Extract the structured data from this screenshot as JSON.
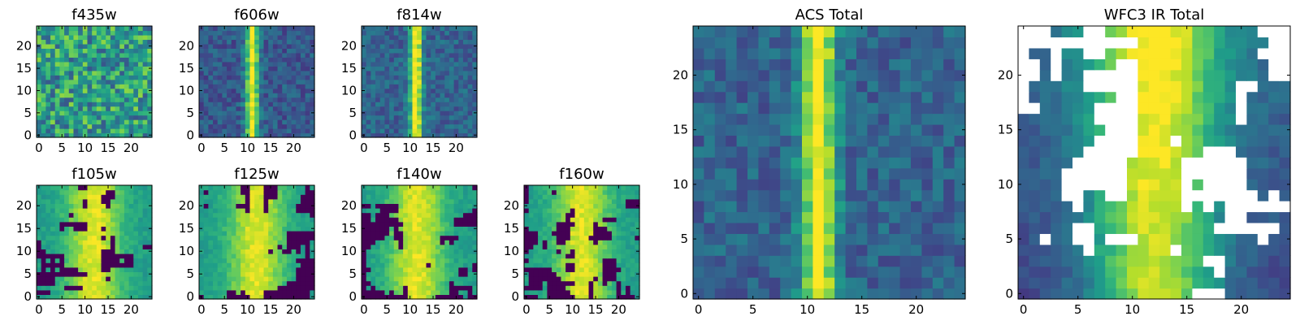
{
  "figure": {
    "grid": false,
    "legend": "none",
    "colormap": "viridis",
    "masked_color": "#ffffff"
  },
  "colormap_stops": [
    "#440154",
    "#482878",
    "#3e4989",
    "#31688e",
    "#26828e",
    "#1f9e89",
    "#35b779",
    "#6ece58",
    "#b5de2b",
    "#fde725"
  ],
  "chart_data": [
    {
      "type": "heatmap",
      "title": "f435w",
      "pattern": "noise",
      "seed": 11,
      "base": 0.55,
      "noise": 0.28,
      "rows": 25,
      "cols": 25,
      "xlim": [
        0,
        25
      ],
      "ylim": [
        0,
        25
      ],
      "xticks": [
        0,
        5,
        10,
        15,
        20
      ],
      "yticks": [
        0,
        5,
        10,
        15,
        20
      ]
    },
    {
      "type": "heatmap",
      "title": "f606w",
      "pattern": "stripe",
      "seed": 23,
      "center": 11.5,
      "width": 1.8,
      "base": 0.28,
      "noise": 0.12,
      "rows": 25,
      "cols": 25,
      "xlim": [
        0,
        25
      ],
      "ylim": [
        0,
        25
      ],
      "xticks": [
        0,
        5,
        10,
        15,
        20
      ],
      "yticks": [
        0,
        5,
        10,
        15,
        20
      ]
    },
    {
      "type": "heatmap",
      "title": "f814w",
      "pattern": "stripe",
      "seed": 37,
      "center": 11.8,
      "width": 1.7,
      "base": 0.32,
      "noise": 0.12,
      "rows": 25,
      "cols": 25,
      "xlim": [
        0,
        25
      ],
      "ylim": [
        0,
        25
      ],
      "xticks": [
        0,
        5,
        10,
        15,
        20
      ],
      "yticks": [
        0,
        5,
        10,
        15,
        20
      ]
    },
    {
      "type": "heatmap",
      "title": "f105w",
      "pattern": "holes",
      "seed": 41,
      "hole_frac": 0.22,
      "center": 12.5,
      "rows": 25,
      "cols": 25,
      "xlim": [
        0,
        25
      ],
      "ylim": [
        0,
        25
      ],
      "xticks": [
        0,
        5,
        10,
        15,
        20
      ],
      "yticks": [
        0,
        5,
        10,
        15,
        20
      ]
    },
    {
      "type": "heatmap",
      "title": "f125w",
      "pattern": "holes",
      "seed": 53,
      "hole_frac": 0.25,
      "center": 12.5,
      "rows": 25,
      "cols": 25,
      "xlim": [
        0,
        25
      ],
      "ylim": [
        0,
        25
      ],
      "xticks": [
        0,
        5,
        10,
        15,
        20
      ],
      "yticks": [
        0,
        5,
        10,
        15,
        20
      ]
    },
    {
      "type": "heatmap",
      "title": "f140w",
      "pattern": "holes",
      "seed": 67,
      "hole_frac": 0.24,
      "center": 12.0,
      "rows": 25,
      "cols": 25,
      "xlim": [
        0,
        25
      ],
      "ylim": [
        0,
        25
      ],
      "xticks": [
        0,
        5,
        10,
        15,
        20
      ],
      "yticks": [
        0,
        5,
        10,
        15,
        20
      ]
    },
    {
      "type": "heatmap",
      "title": "f160w",
      "pattern": "holes",
      "seed": 79,
      "hole_frac": 0.26,
      "center": 12.5,
      "rows": 25,
      "cols": 25,
      "xlim": [
        0,
        25
      ],
      "ylim": [
        0,
        25
      ],
      "xticks": [
        0,
        5,
        10,
        15,
        20
      ],
      "yticks": [
        0,
        5,
        10,
        15,
        20
      ]
    },
    {
      "type": "heatmap",
      "title": "ACS Total",
      "pattern": "stripe",
      "seed": 91,
      "center": 11.5,
      "width": 2.0,
      "base": 0.32,
      "noise": 0.12,
      "rows": 25,
      "cols": 25,
      "xlim": [
        0,
        25
      ],
      "ylim": [
        0,
        25
      ],
      "xticks": [
        0,
        5,
        10,
        15,
        20
      ],
      "yticks": [
        0,
        5,
        10,
        15,
        20
      ]
    },
    {
      "type": "heatmap",
      "title": "WFC3 IR Total",
      "pattern": "masked",
      "seed": 103,
      "mask_frac": 0.3,
      "center": 12.5,
      "rows": 25,
      "cols": 25,
      "xlim": [
        0,
        25
      ],
      "ylim": [
        0,
        25
      ],
      "xticks": [
        0,
        5,
        10,
        15,
        20
      ],
      "yticks": [
        0,
        5,
        10,
        15,
        20
      ]
    }
  ]
}
